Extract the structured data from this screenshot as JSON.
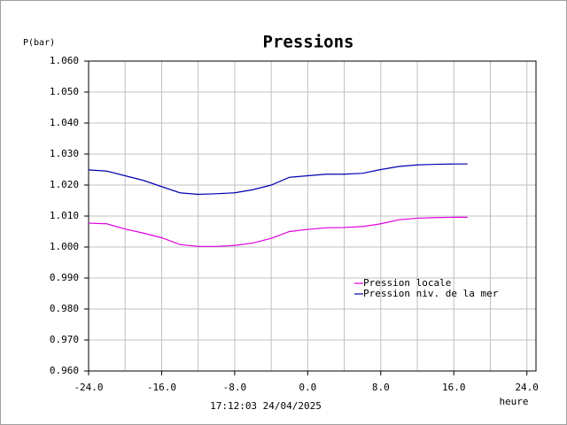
{
  "chart_data": {
    "type": "line",
    "title": "Pressions",
    "y_label": "P(bar)",
    "x_label": "heure",
    "timestamp": "17:12:03  24/04/2025",
    "x": [
      -24,
      -22,
      -20,
      -18,
      -16,
      -14,
      -12,
      -10,
      -8,
      -6,
      -4,
      -2,
      0,
      2,
      4,
      6,
      8,
      10,
      12,
      14,
      16,
      17.5
    ],
    "series": [
      {
        "name": "Pression locale",
        "color": "#e000e0",
        "values": [
          1.0077,
          1.0075,
          1.0058,
          1.0045,
          1.003,
          1.0008,
          1.0002,
          1.0002,
          1.0005,
          1.0013,
          1.0028,
          1.005,
          1.0057,
          1.0062,
          1.0063,
          1.0066,
          1.0075,
          1.0088,
          1.0093,
          1.0095,
          1.0096,
          1.0096
        ]
      },
      {
        "name": "Pression niv. de la mer",
        "color": "#0000b0",
        "values": [
          1.0249,
          1.0245,
          1.023,
          1.0215,
          1.0195,
          1.0175,
          1.017,
          1.0172,
          1.0175,
          1.0185,
          1.02,
          1.0225,
          1.023,
          1.0235,
          1.0235,
          1.0238,
          1.025,
          1.026,
          1.0265,
          1.0267,
          1.0268,
          1.0268
        ]
      }
    ],
    "xlim": [
      -24,
      25
    ],
    "ylim": [
      0.96,
      1.06
    ],
    "xticks": [
      {
        "value": -24,
        "label": "-24.0"
      },
      {
        "value": -16,
        "label": "-16.0"
      },
      {
        "value": -8,
        "label": "-8.0"
      },
      {
        "value": 0,
        "label": "0.0"
      },
      {
        "value": 8,
        "label": "8.0"
      },
      {
        "value": 16,
        "label": "16.0"
      },
      {
        "value": 24,
        "label": "24.0"
      }
    ],
    "yticks": [
      {
        "value": 0.96,
        "label": "0.960"
      },
      {
        "value": 0.97,
        "label": "0.970"
      },
      {
        "value": 0.98,
        "label": "0.980"
      },
      {
        "value": 0.99,
        "label": "0.990"
      },
      {
        "value": 1.0,
        "label": "1.000"
      },
      {
        "value": 1.01,
        "label": "1.010"
      },
      {
        "value": 1.02,
        "label": "1.020"
      },
      {
        "value": 1.03,
        "label": "1.030"
      },
      {
        "value": 1.04,
        "label": "1.040"
      },
      {
        "value": 1.05,
        "label": "1.050"
      },
      {
        "value": 1.06,
        "label": "1.060"
      }
    ],
    "grid": true,
    "legend": "lower right"
  }
}
